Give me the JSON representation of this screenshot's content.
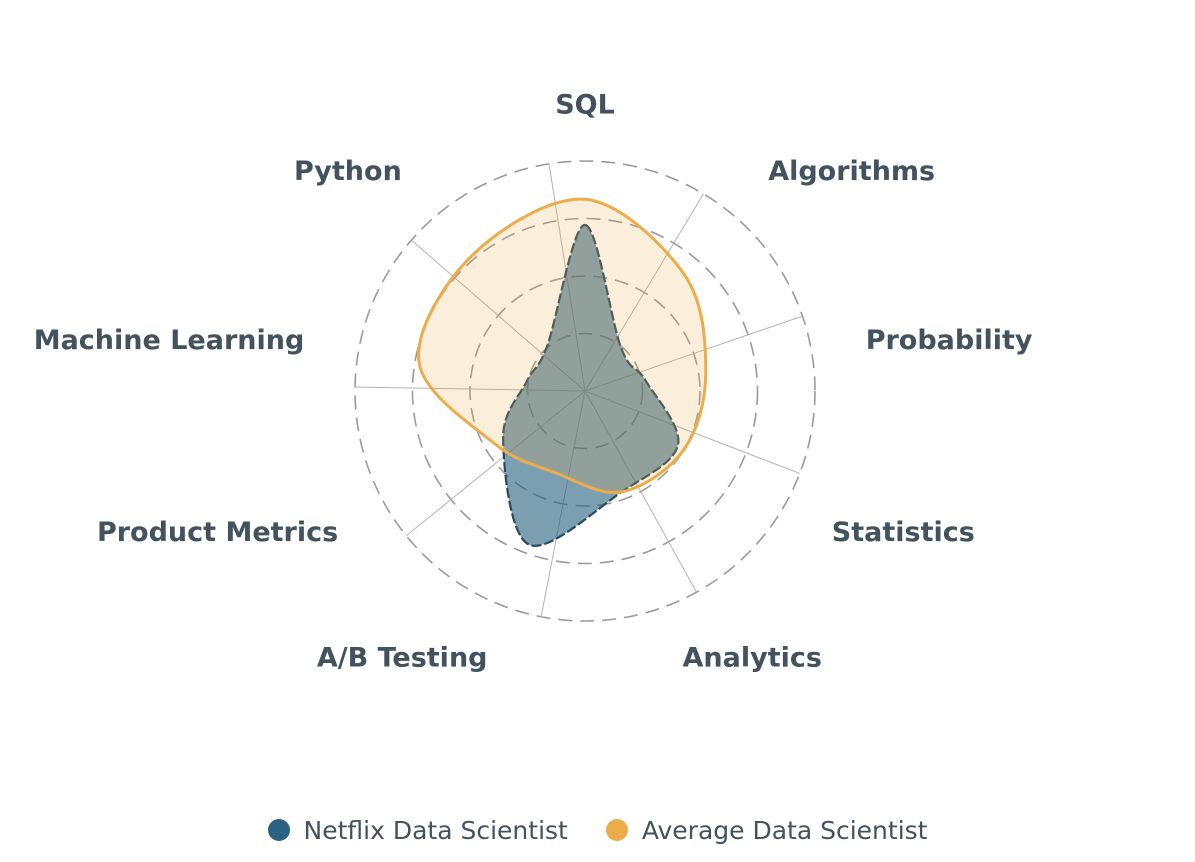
{
  "chart_data": {
    "type": "radar",
    "axes": [
      "SQL",
      "Algorithms",
      "Probability",
      "Statistics",
      "Analytics",
      "A/B Testing",
      "Product Metrics",
      "Machine Learning",
      "Python"
    ],
    "series": [
      {
        "name": "Netflix Data Scientist",
        "values": [
          6.5,
          2.2,
          2.4,
          4.2,
          4.2,
          6.4,
          3.7,
          2.3,
          2.3
        ],
        "color": "#2b6281"
      },
      {
        "name": "Average Data Scientist",
        "values": [
          7.5,
          6.0,
          4.8,
          4.5,
          4.2,
          3.4,
          4.1,
          6.6,
          6.9
        ],
        "color": "#ecac49"
      }
    ],
    "rmax": 9,
    "grid_levels": 4,
    "grid_style": "dashed circles",
    "legend_position": "bottom"
  },
  "legend": {
    "items": [
      {
        "label": "Netflix Data Scientist",
        "color": "#2b6281"
      },
      {
        "label": "Average Data Scientist",
        "color": "#ecac49"
      }
    ]
  }
}
